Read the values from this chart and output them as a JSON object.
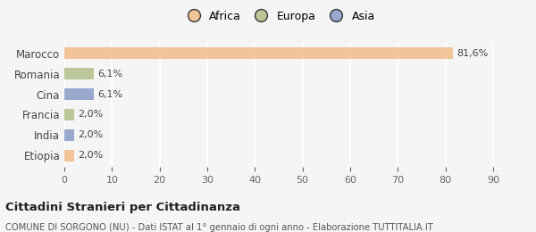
{
  "countries": [
    "Marocco",
    "Romania",
    "Cina",
    "Francia",
    "India",
    "Etiopia"
  ],
  "values": [
    81.6,
    6.1,
    6.1,
    2.0,
    2.0,
    2.0
  ],
  "labels": [
    "81,6%",
    "6,1%",
    "6,1%",
    "2,0%",
    "2,0%",
    "2,0%"
  ],
  "colors": [
    "#f0b47a",
    "#a8b87a",
    "#7a90c0",
    "#a8b87a",
    "#7a90c0",
    "#f0b47a"
  ],
  "bar_alpha": 0.75,
  "xlim": [
    0,
    90
  ],
  "xticks": [
    0,
    10,
    20,
    30,
    40,
    50,
    60,
    70,
    80,
    90
  ],
  "legend_items": [
    {
      "label": "Africa",
      "color": "#f0b47a"
    },
    {
      "label": "Europa",
      "color": "#a8b87a"
    },
    {
      "label": "Asia",
      "color": "#7a90c0"
    }
  ],
  "title": "Cittadini Stranieri per Cittadinanza",
  "subtitle": "COMUNE DI SORGONO (NU) - Dati ISTAT al 1° gennaio di ogni anno - Elaborazione TUTTITALIA.IT",
  "bg_color": "#f5f5f5",
  "grid_color": "#ffffff",
  "bar_height": 0.55
}
